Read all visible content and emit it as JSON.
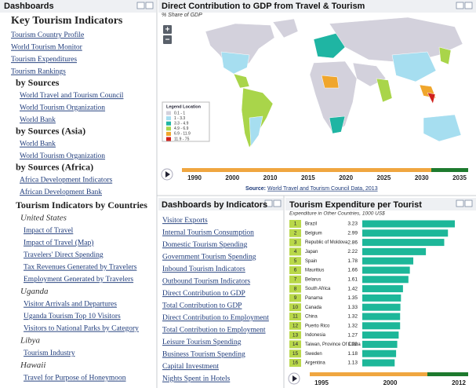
{
  "left_panel": {
    "title": "Dashboards",
    "heading": "Key Tourism Indicators",
    "links": [
      "Tourism Country Profile",
      "World Tourism Monitor",
      "Tourism Expenditures",
      "Tourism Rankings"
    ],
    "sections": [
      {
        "title": "by Sources",
        "links": [
          "World Travel and Tourism Council",
          "World Tourism Organization",
          "World Bank"
        ]
      },
      {
        "title": "by Sources (Asia)",
        "links": [
          "World Bank",
          "World Tourism Organization"
        ]
      },
      {
        "title": "by Sources (Africa)",
        "links": [
          "Africa Development Indicators",
          "African Development Bank"
        ]
      }
    ],
    "countries_heading": "Tourism Indicators by Countries",
    "countries": [
      {
        "name": "United States",
        "links": [
          "Impact of Travel",
          "Impact of Travel (Map)",
          "Travelers' Direct Spending",
          "Tax Revenues Generated by Travelers",
          "Employment Generated by Travelers"
        ]
      },
      {
        "name": "Uganda",
        "links": [
          "Visitor Arrivals and Departures",
          "Uganda Tourism Top 10 Visitors",
          "Visitors to National Parks by Category"
        ]
      },
      {
        "name": "Libya",
        "links": [
          "Tourism Industry"
        ]
      },
      {
        "name": "Hawaii",
        "links": [
          "Travel for Purpose of Honeymoon"
        ]
      }
    ]
  },
  "map_panel": {
    "title": "Direct Contribution to GDP from Travel & Tourism",
    "subtitle": "% Share of GDP",
    "zoom_in": "+",
    "zoom_out": "−",
    "legend_title": "Legend Location",
    "legend": [
      {
        "label": "0.1 - 1",
        "color": "#d3d1dc"
      },
      {
        "label": "1 - 3.3",
        "color": "#a6def0"
      },
      {
        "label": "3.3 - 4.9",
        "color": "#1fb5a3"
      },
      {
        "label": "4.9 - 6.9",
        "color": "#a9d54a"
      },
      {
        "label": "6.9 - 11.9",
        "color": "#f0a62c"
      },
      {
        "label": "11.9 - 75",
        "color": "#d0211c"
      }
    ],
    "timeline": [
      1990,
      2000,
      2010,
      2015,
      2020,
      2025,
      2030,
      2035
    ],
    "source_prefix": "Source:",
    "source_link": "World Travel and Tourism Council Data, 2013"
  },
  "indicators_panel": {
    "title": "Dashboards by Indicators",
    "links": [
      "Visitor Exports",
      "Internal Tourism Consumption",
      "Domestic Tourism Spending",
      "Government Tourism Spending",
      "Inbound Tourism Indicators",
      "Outbound Tourism Indicators",
      "Direct Contribution to GDP",
      "Total Contribution to GDP",
      "Direct Contribution to Employment",
      "Total Contribution to Employment",
      "Leisure Tourism Spending",
      "Business Tourism Spending",
      "Capital Investment",
      "Nights Spent in Hotels"
    ]
  },
  "expenditure_panel": {
    "title": "Tourism Expenditure per Tourist",
    "subtitle": "Expenditure in Other Countries, 1000 US$",
    "bar_color": "#1db799",
    "rank_color": "#b9d84a",
    "rows": [
      {
        "rank": 1,
        "country": "Brazil",
        "value": 3.23
      },
      {
        "rank": 2,
        "country": "Belgium",
        "value": 2.99
      },
      {
        "rank": 3,
        "country": "Republic of Moldova",
        "value": 2.86
      },
      {
        "rank": 4,
        "country": "Japan",
        "value": 2.22
      },
      {
        "rank": 5,
        "country": "Spain",
        "value": 1.78
      },
      {
        "rank": 6,
        "country": "Mauritius",
        "value": 1.66
      },
      {
        "rank": 7,
        "country": "Belarus",
        "value": 1.61
      },
      {
        "rank": 8,
        "country": "South Africa",
        "value": 1.42
      },
      {
        "rank": 9,
        "country": "Panama",
        "value": 1.35
      },
      {
        "rank": 10,
        "country": "Canada",
        "value": 1.33
      },
      {
        "rank": 11,
        "country": "China",
        "value": 1.32
      },
      {
        "rank": 12,
        "country": "Puerto Rico",
        "value": 1.32
      },
      {
        "rank": 13,
        "country": "Indonesia",
        "value": 1.27
      },
      {
        "rank": 14,
        "country": "Taiwan, Province Of China",
        "value": 1.22
      },
      {
        "rank": 15,
        "country": "Sweden",
        "value": 1.18
      },
      {
        "rank": 16,
        "country": "Argentina",
        "value": 1.13
      }
    ],
    "timeline": [
      1995,
      2000,
      2012
    ]
  }
}
